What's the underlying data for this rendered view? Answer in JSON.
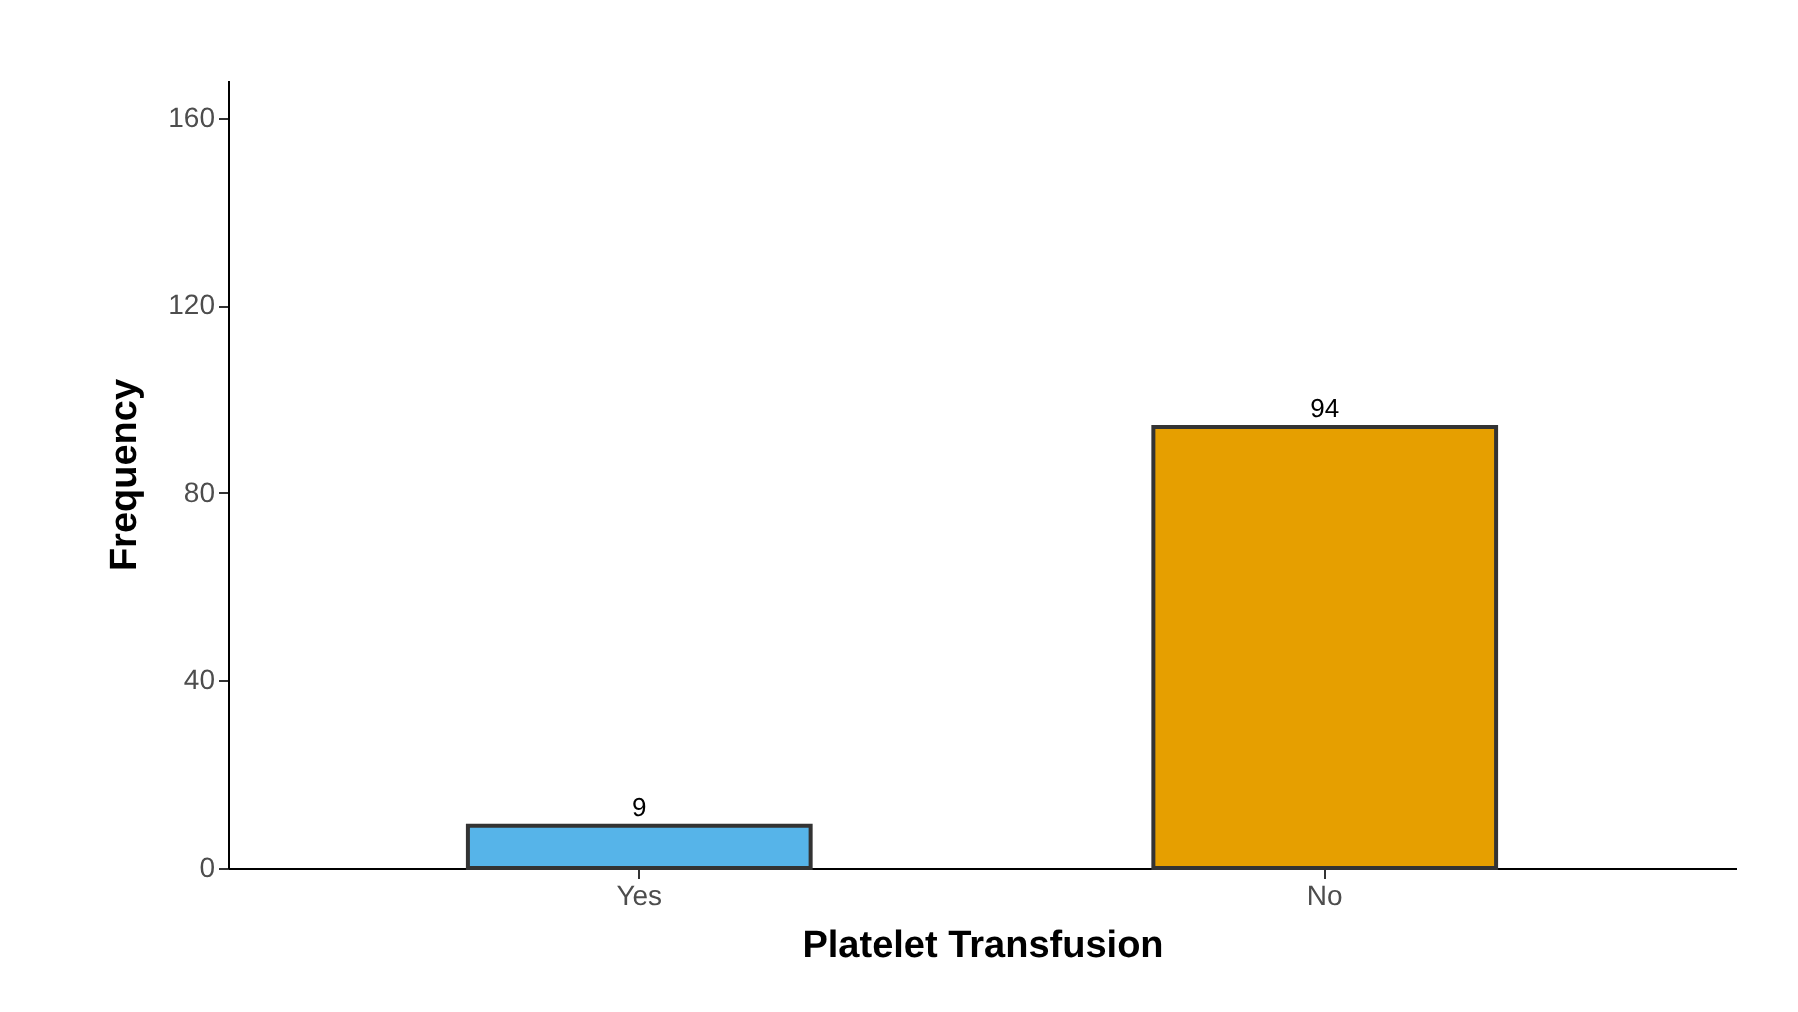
{
  "chart_data": {
    "type": "bar",
    "xlabel": "Platelet Transfusion",
    "ylabel": "Frequency",
    "categories": [
      "Yes",
      "No"
    ],
    "values": [
      9,
      94
    ],
    "colors": [
      "#56b4e9",
      "#e69f00"
    ],
    "ylim": [
      0,
      168
    ],
    "yticks": [
      0,
      40,
      80,
      120,
      160
    ],
    "data_labels": true,
    "grid": false
  }
}
